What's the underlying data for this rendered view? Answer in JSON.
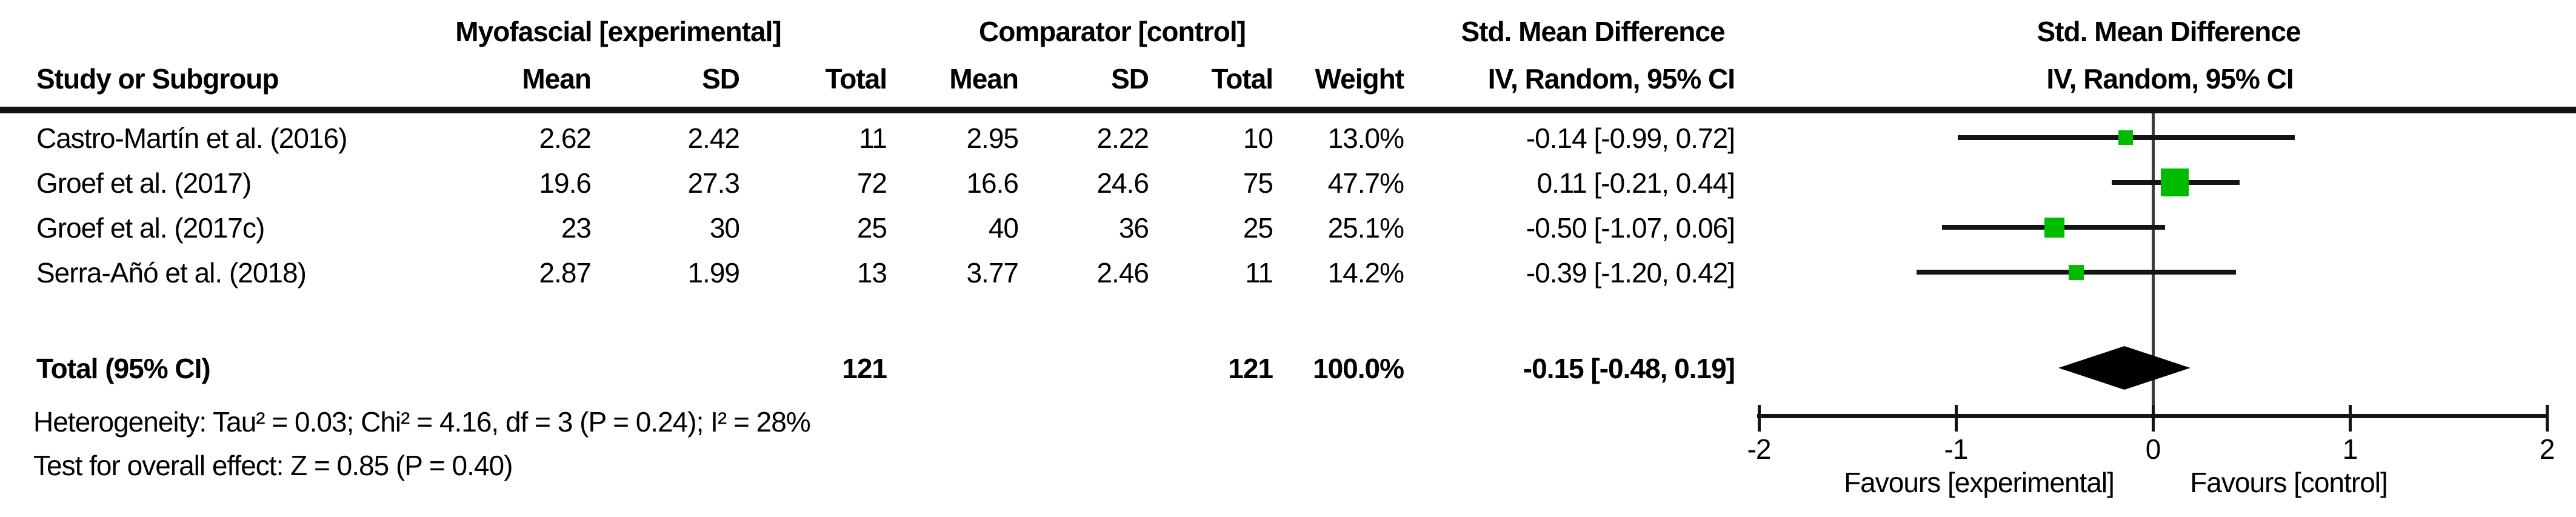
{
  "table": {
    "group_headers": {
      "experimental": "Myofascial [experimental]",
      "control": "Comparator [control]",
      "smd_left": "Std. Mean Difference",
      "smd_right": "Std. Mean Difference"
    },
    "col_headers": {
      "study": "Study or Subgroup",
      "mean_exp": "Mean",
      "sd_exp": "SD",
      "total_exp": "Total",
      "mean_ctl": "Mean",
      "sd_ctl": "SD",
      "total_ctl": "Total",
      "weight": "Weight",
      "ci_left": "IV, Random, 95% CI",
      "ci_right": "IV, Random, 95% CI"
    },
    "studies": [
      {
        "name": "Castro-Martín et al. (2016)",
        "exp_mean": "2.62",
        "exp_sd": "2.42",
        "exp_total": "11",
        "ctl_mean": "2.95",
        "ctl_sd": "2.22",
        "ctl_total": "10",
        "weight": "13.0%",
        "ci": "-0.14 [-0.99, 0.72]"
      },
      {
        "name": "Groef et al. (2017)",
        "exp_mean": "19.6",
        "exp_sd": "27.3",
        "exp_total": "72",
        "ctl_mean": "16.6",
        "ctl_sd": "24.6",
        "ctl_total": "75",
        "weight": "47.7%",
        "ci": "0.11 [-0.21, 0.44]"
      },
      {
        "name": "Groef et al. (2017c)",
        "exp_mean": "23",
        "exp_sd": "30",
        "exp_total": "25",
        "ctl_mean": "40",
        "ctl_sd": "36",
        "ctl_total": "25",
        "weight": "25.1%",
        "ci": "-0.50 [-1.07, 0.06]"
      },
      {
        "name": "Serra-Añó et al. (2018)",
        "exp_mean": "2.87",
        "exp_sd": "1.99",
        "exp_total": "13",
        "ctl_mean": "3.77",
        "ctl_sd": "2.46",
        "ctl_total": "11",
        "weight": "14.2%",
        "ci": "-0.39 [-1.20, 0.42]"
      }
    ],
    "total_row": {
      "label": "Total (95% CI)",
      "exp_total": "121",
      "ctl_total": "121",
      "weight": "100.0%",
      "ci": "-0.15 [-0.48, 0.19]"
    },
    "heterogeneity": "Heterogeneity: Tau² = 0.03; Chi² = 4.16, df = 3 (P = 0.24); I² = 28%",
    "overall_effect": "Test for overall effect: Z = 0.85 (P = 0.40)"
  },
  "chart_data": {
    "type": "forest",
    "effect_measure": "Std. Mean Difference (IV, Random, 95% CI)",
    "studies": [
      {
        "name": "Castro-Martín et al. (2016)",
        "est": -0.14,
        "lo": -0.99,
        "hi": 0.72,
        "weight_pct": 13.0
      },
      {
        "name": "Groef et al. (2017)",
        "est": 0.11,
        "lo": -0.21,
        "hi": 0.44,
        "weight_pct": 47.7
      },
      {
        "name": "Groef et al. (2017c)",
        "est": -0.5,
        "lo": -1.07,
        "hi": 0.06,
        "weight_pct": 25.1
      },
      {
        "name": "Serra-Añó et al. (2018)",
        "est": -0.39,
        "lo": -1.2,
        "hi": 0.42,
        "weight_pct": 14.2
      }
    ],
    "total": {
      "est": -0.15,
      "lo": -0.48,
      "hi": 0.19
    },
    "x_axis": {
      "min": -2,
      "max": 2,
      "ticks": [
        -2,
        -1,
        0,
        1,
        2
      ]
    },
    "favours_left": "Favours [experimental]",
    "favours_right": "Favours [control]",
    "marker_color": "#00BC00",
    "line_color": "#141414"
  }
}
